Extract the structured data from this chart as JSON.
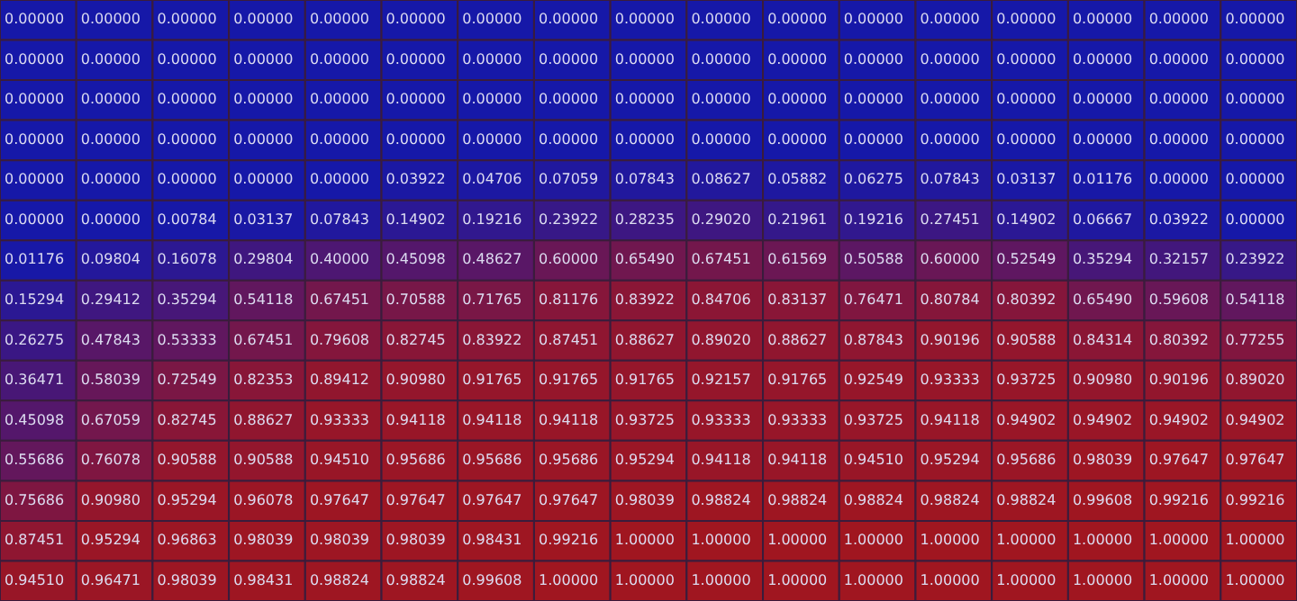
{
  "chart_data": {
    "type": "heatmap",
    "categories": [
      null,
      null,
      null,
      null,
      null,
      null,
      null,
      null,
      null,
      null,
      null,
      null,
      null,
      null,
      null,
      null,
      null
    ],
    "y_categories": [
      null,
      null,
      null,
      null,
      null,
      null,
      null,
      null,
      null,
      null,
      null,
      null,
      null,
      null,
      null
    ],
    "cells": [
      [
        0,
        0,
        0,
        0,
        0,
        0,
        0,
        0,
        0,
        0,
        0,
        0,
        0,
        0,
        0,
        0,
        0
      ],
      [
        0,
        0,
        0,
        0,
        0,
        0,
        0,
        0,
        0,
        0,
        0,
        0,
        0,
        0,
        0,
        0,
        0
      ],
      [
        0,
        0,
        0,
        0,
        0,
        0,
        0,
        0,
        0,
        0,
        0,
        0,
        0,
        0,
        0,
        0,
        0
      ],
      [
        0,
        0,
        0,
        0,
        0,
        0,
        0,
        0,
        0,
        0,
        0,
        0,
        0,
        0,
        0,
        0,
        0
      ],
      [
        0,
        0,
        0,
        0,
        0,
        0.03922,
        0.04706,
        0.07059,
        0.07843,
        0.08627,
        0.05882,
        0.06275,
        0.07843,
        0.03137,
        0.01176,
        0,
        0
      ],
      [
        0,
        0,
        0.00784,
        0.03137,
        0.07843,
        0.14902,
        0.19216,
        0.23922,
        0.28235,
        0.2902,
        0.21961,
        0.19216,
        0.27451,
        0.14902,
        0.06667,
        0.03922,
        0
      ],
      [
        0.01176,
        0.09804,
        0.16078,
        0.29804,
        0.4,
        0.45098,
        0.48627,
        0.6,
        0.6549,
        0.67451,
        0.61569,
        0.50588,
        0.6,
        0.52549,
        0.35294,
        0.32157,
        0.23922
      ],
      [
        0.15294,
        0.29412,
        0.35294,
        0.54118,
        0.67451,
        0.70588,
        0.71765,
        0.81176,
        0.83922,
        0.84706,
        0.83137,
        0.76471,
        0.80784,
        0.80392,
        0.6549,
        0.59608,
        0.54118
      ],
      [
        0.26275,
        0.47843,
        0.53333,
        0.67451,
        0.79608,
        0.82745,
        0.83922,
        0.87451,
        0.88627,
        0.8902,
        0.88627,
        0.87843,
        0.90196,
        0.90588,
        0.84314,
        0.80392,
        0.77255
      ],
      [
        0.36471,
        0.58039,
        0.72549,
        0.82353,
        0.89412,
        0.9098,
        0.91765,
        0.91765,
        0.91765,
        0.92157,
        0.91765,
        0.92549,
        0.93333,
        0.93725,
        0.9098,
        0.90196,
        0.8902
      ],
      [
        0.45098,
        0.67059,
        0.82745,
        0.88627,
        0.93333,
        0.94118,
        0.94118,
        0.94118,
        0.93725,
        0.93333,
        0.93333,
        0.93725,
        0.94118,
        0.94902,
        0.94902,
        0.94902,
        0.94902
      ],
      [
        0.55686,
        0.76078,
        0.90588,
        0.90588,
        0.9451,
        0.95686,
        0.95686,
        0.95686,
        0.95294,
        0.94118,
        0.94118,
        0.9451,
        0.95294,
        0.95686,
        0.98039,
        0.97647,
        0.97647
      ],
      [
        0.75686,
        0.9098,
        0.95294,
        0.96078,
        0.97647,
        0.97647,
        0.97647,
        0.97647,
        0.98039,
        0.98824,
        0.98824,
        0.98824,
        0.98824,
        0.98824,
        0.99608,
        0.99216,
        0.99216
      ],
      [
        0.87451,
        0.95294,
        0.96863,
        0.98039,
        0.98039,
        0.98039,
        0.98431,
        0.99216,
        1,
        1,
        1,
        1,
        1,
        1,
        1,
        1,
        1
      ],
      [
        0.9451,
        0.96471,
        0.98039,
        0.98431,
        0.98824,
        0.98824,
        0.99608,
        1,
        1,
        1,
        1,
        1,
        1,
        1,
        1,
        1,
        1
      ]
    ],
    "cell_labels": [
      [
        "0.00000",
        "0.00000",
        "0.00000",
        "0.00000",
        "0.00000",
        "0.00000",
        "0.00000",
        "0.00000",
        "0.00000",
        "0.00000",
        "0.00000",
        "0.00000",
        "0.00000",
        "0.00000",
        "0.00000",
        "0.00000",
        "0.00000"
      ],
      [
        "0.00000",
        "0.00000",
        "0.00000",
        "0.00000",
        "0.00000",
        "0.00000",
        "0.00000",
        "0.00000",
        "0.00000",
        "0.00000",
        "0.00000",
        "0.00000",
        "0.00000",
        "0.00000",
        "0.00000",
        "0.00000",
        "0.00000"
      ],
      [
        "0.00000",
        "0.00000",
        "0.00000",
        "0.00000",
        "0.00000",
        "0.00000",
        "0.00000",
        "0.00000",
        "0.00000",
        "0.00000",
        "0.00000",
        "0.00000",
        "0.00000",
        "0.00000",
        "0.00000",
        "0.00000",
        "0.00000"
      ],
      [
        "0.00000",
        "0.00000",
        "0.00000",
        "0.00000",
        "0.00000",
        "0.00000",
        "0.00000",
        "0.00000",
        "0.00000",
        "0.00000",
        "0.00000",
        "0.00000",
        "0.00000",
        "0.00000",
        "0.00000",
        "0.00000",
        "0.00000"
      ],
      [
        "0.00000",
        "0.00000",
        "0.00000",
        "0.00000",
        "0.00000",
        "0.03922",
        "0.04706",
        "0.07059",
        "0.07843",
        "0.08627",
        "0.05882",
        "0.06275",
        "0.07843",
        "0.03137",
        "0.01176",
        "0.00000",
        "0.00000"
      ],
      [
        "0.00000",
        "0.00000",
        "0.00784",
        "0.03137",
        "0.07843",
        "0.14902",
        "0.19216",
        "0.23922",
        "0.28235",
        "0.29020",
        "0.21961",
        "0.19216",
        "0.27451",
        "0.14902",
        "0.06667",
        "0.03922",
        "0.00000"
      ],
      [
        "0.01176",
        "0.09804",
        "0.16078",
        "0.29804",
        "0.40000",
        "0.45098",
        "0.48627",
        "0.60000",
        "0.65490",
        "0.67451",
        "0.61569",
        "0.50588",
        "0.60000",
        "0.52549",
        "0.35294",
        "0.32157",
        "0.23922"
      ],
      [
        "0.15294",
        "0.29412",
        "0.35294",
        "0.54118",
        "0.67451",
        "0.70588",
        "0.71765",
        "0.81176",
        "0.83922",
        "0.84706",
        "0.83137",
        "0.76471",
        "0.80784",
        "0.80392",
        "0.65490",
        "0.59608",
        "0.54118"
      ],
      [
        "0.26275",
        "0.47843",
        "0.53333",
        "0.67451",
        "0.79608",
        "0.82745",
        "0.83922",
        "0.87451",
        "0.88627",
        "0.89020",
        "0.88627",
        "0.87843",
        "0.90196",
        "0.90588",
        "0.84314",
        "0.80392",
        "0.77255"
      ],
      [
        "0.36471",
        "0.58039",
        "0.72549",
        "0.82353",
        "0.89412",
        "0.90980",
        "0.91765",
        "0.91765",
        "0.91765",
        "0.92157",
        "0.91765",
        "0.92549",
        "0.93333",
        "0.93725",
        "0.90980",
        "0.90196",
        "0.89020"
      ],
      [
        "0.45098",
        "0.67059",
        "0.82745",
        "0.88627",
        "0.93333",
        "0.94118",
        "0.94118",
        "0.94118",
        "0.93725",
        "0.93333",
        "0.93333",
        "0.93725",
        "0.94118",
        "0.94902",
        "0.94902",
        "0.94902",
        "0.94902"
      ],
      [
        "0.55686",
        "0.76078",
        "0.90588",
        "0.90588",
        "0.94510",
        "0.95686",
        "0.95686",
        "0.95686",
        "0.95294",
        "0.94118",
        "0.94118",
        "0.94510",
        "0.95294",
        "0.95686",
        "0.98039",
        "0.97647",
        "0.97647"
      ],
      [
        "0.75686",
        "0.90980",
        "0.95294",
        "0.96078",
        "0.97647",
        "0.97647",
        "0.97647",
        "0.97647",
        "0.98039",
        "0.98824",
        "0.98824",
        "0.98824",
        "0.98824",
        "0.98824",
        "0.99608",
        "0.99216",
        "0.99216"
      ],
      [
        "0.87451",
        "0.95294",
        "0.96863",
        "0.98039",
        "0.98039",
        "0.98039",
        "0.98431",
        "0.99216",
        "1.00000",
        "1.00000",
        "1.00000",
        "1.00000",
        "1.00000",
        "1.00000",
        "1.00000",
        "1.00000",
        "1.00000"
      ],
      [
        "0.94510",
        "0.96471",
        "0.98039",
        "0.98431",
        "0.98824",
        "0.98824",
        "0.99608",
        "1.00000",
        "1.00000",
        "1.00000",
        "1.00000",
        "1.00000",
        "1.00000",
        "1.00000",
        "1.00000",
        "1.00000",
        "1.00000"
      ]
    ]
  }
}
